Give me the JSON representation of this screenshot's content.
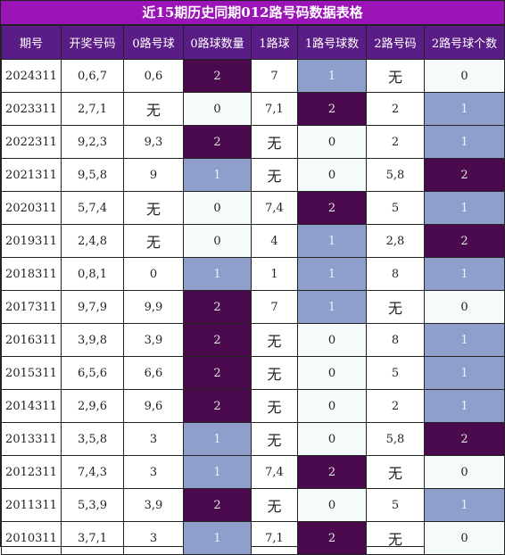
{
  "title": "近15期历史同期012路号码数据表格",
  "columns": [
    "期号",
    "开奖号码",
    "0路号球",
    "0路球数量",
    "1路球",
    "1路号球数",
    "2路号码",
    "2路号球个数"
  ],
  "rows": [
    {
      "issue": "2024311",
      "draw": "0,6,7",
      "r0": "0,6",
      "r0n": "2",
      "r1": "7",
      "r1n": "1",
      "r2": "无",
      "r2n": "0"
    },
    {
      "issue": "2023311",
      "draw": "2,7,1",
      "r0": "无",
      "r0n": "0",
      "r1": "7,1",
      "r1n": "2",
      "r2": "2",
      "r2n": "1"
    },
    {
      "issue": "2022311",
      "draw": "9,2,3",
      "r0": "9,3",
      "r0n": "2",
      "r1": "无",
      "r1n": "0",
      "r2": "2",
      "r2n": "1"
    },
    {
      "issue": "2021311",
      "draw": "9,5,8",
      "r0": "9",
      "r0n": "1",
      "r1": "无",
      "r1n": "0",
      "r2": "5,8",
      "r2n": "2"
    },
    {
      "issue": "2020311",
      "draw": "5,7,4",
      "r0": "无",
      "r0n": "0",
      "r1": "7,4",
      "r1n": "2",
      "r2": "5",
      "r2n": "1"
    },
    {
      "issue": "2019311",
      "draw": "2,4,8",
      "r0": "无",
      "r0n": "0",
      "r1": "4",
      "r1n": "1",
      "r2": "2,8",
      "r2n": "2"
    },
    {
      "issue": "2018311",
      "draw": "0,8,1",
      "r0": "0",
      "r0n": "1",
      "r1": "1",
      "r1n": "1",
      "r2": "8",
      "r2n": "1"
    },
    {
      "issue": "2017311",
      "draw": "9,7,9",
      "r0": "9,9",
      "r0n": "2",
      "r1": "7",
      "r1n": "1",
      "r2": "无",
      "r2n": "0"
    },
    {
      "issue": "2016311",
      "draw": "3,9,8",
      "r0": "3,9",
      "r0n": "2",
      "r1": "无",
      "r1n": "0",
      "r2": "8",
      "r2n": "1"
    },
    {
      "issue": "2015311",
      "draw": "6,5,6",
      "r0": "6,6",
      "r0n": "2",
      "r1": "无",
      "r1n": "0",
      "r2": "5",
      "r2n": "1"
    },
    {
      "issue": "2014311",
      "draw": "2,9,6",
      "r0": "9,6",
      "r0n": "2",
      "r1": "无",
      "r1n": "0",
      "r2": "2",
      "r2n": "1"
    },
    {
      "issue": "2013311",
      "draw": "3,5,8",
      "r0": "3",
      "r0n": "1",
      "r1": "无",
      "r1n": "0",
      "r2": "5,8",
      "r2n": "2"
    },
    {
      "issue": "2012311",
      "draw": "7,4,3",
      "r0": "3",
      "r0n": "1",
      "r1": "7,4",
      "r1n": "2",
      "r2": "无",
      "r2n": "0"
    },
    {
      "issue": "2011311",
      "draw": "5,3,9",
      "r0": "3,9",
      "r0n": "2",
      "r1": "无",
      "r1n": "0",
      "r2": "5",
      "r2n": "1"
    },
    {
      "issue": "2010311",
      "draw": "3,7,1",
      "r0": "3",
      "r0n": "1",
      "r1": "7,1",
      "r1n": "2",
      "r2": "无",
      "r2n": "0"
    }
  ],
  "colors": {
    "title_bg": "#9b14b8",
    "header_bg": "#5a1d86",
    "count_2": "#4b0a4e",
    "count_1": "#8d9fca",
    "cell_bg": "#ffffff",
    "count_0": "#f4fbfa"
  }
}
